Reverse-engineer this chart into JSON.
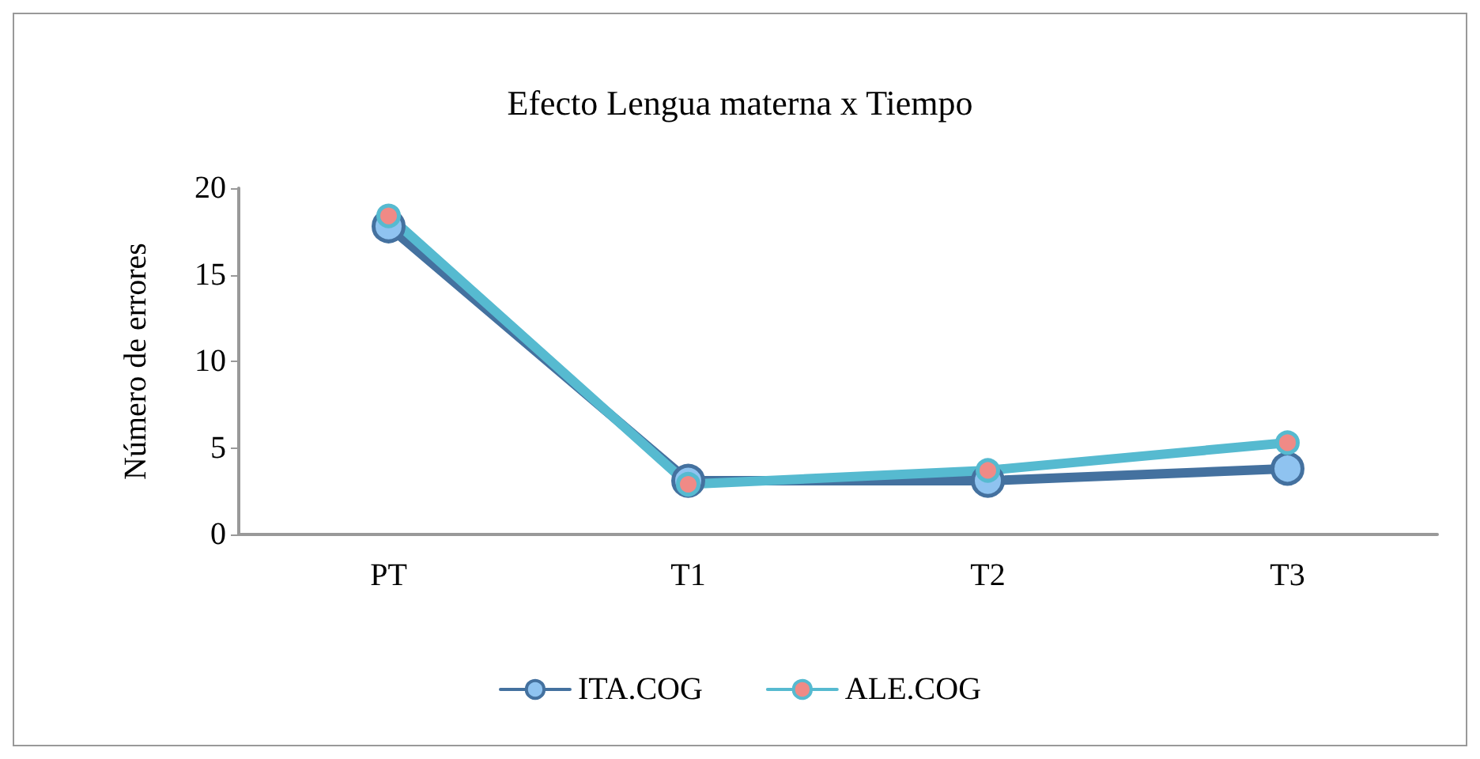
{
  "chart_data": {
    "type": "line",
    "title": "Efecto Lengua materna x Tiempo",
    "ylabel": "Número de errores",
    "categories": [
      "PT",
      "T1",
      "T2",
      "T3"
    ],
    "series": [
      {
        "name": "ITA.COG",
        "color": "#44719f",
        "values": [
          17.8,
          3.1,
          3.1,
          3.8
        ]
      },
      {
        "name": "ALE.COG",
        "color": "#56bad0",
        "values": [
          18.4,
          2.9,
          3.7,
          5.3
        ]
      }
    ],
    "ylim": [
      0,
      20
    ],
    "yticks": [
      0,
      5,
      10,
      15,
      20
    ],
    "grid": false,
    "legend": "bottom",
    "marker": "circle"
  }
}
